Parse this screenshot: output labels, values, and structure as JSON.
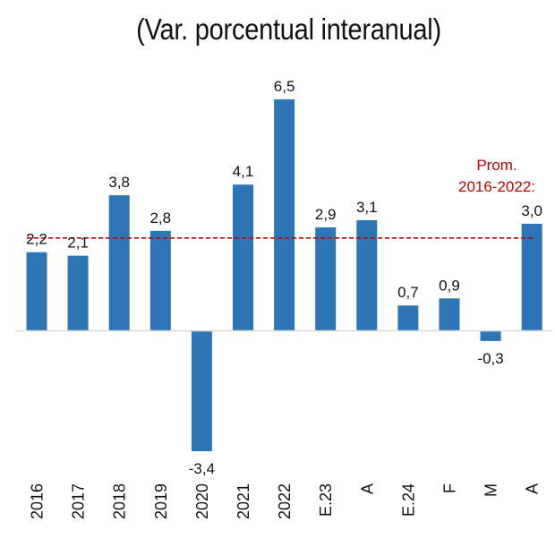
{
  "chart_data": {
    "type": "bar",
    "title": "(Var. porcentual interanual)",
    "xlabel": "",
    "ylabel": "",
    "categories": [
      "2016",
      "2017",
      "2018",
      "2019",
      "2020",
      "2021",
      "2022",
      "E.23",
      "A",
      "E.24",
      "F",
      "M",
      "A"
    ],
    "values": [
      2.2,
      2.1,
      3.8,
      2.8,
      -3.4,
      4.1,
      6.5,
      2.9,
      3.1,
      0.7,
      0.9,
      -0.3,
      3.0
    ],
    "value_labels": [
      "2,2",
      "2,1",
      "3,8",
      "2,8",
      "-3,4",
      "4,1",
      "6,5",
      "2,9",
      "3,1",
      "0,7",
      "0,9",
      "-0,3",
      "3,0"
    ],
    "ylim": [
      -3.4,
      6.5
    ],
    "grid": false,
    "reference_line": {
      "label_lines": [
        "Prom.",
        "2016-2022:"
      ],
      "value": 2.6,
      "style": "dashed"
    },
    "colors": {
      "bar": "#2E75B6",
      "reference_line": "#C00000",
      "axis": "#D9D9D9"
    }
  }
}
